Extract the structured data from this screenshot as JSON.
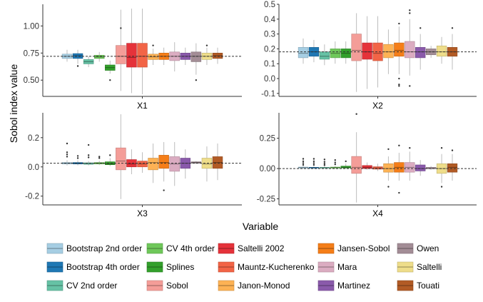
{
  "chart_data": {
    "type": "boxplot",
    "xlabel": "Variable",
    "ylabel": "Sobol index value",
    "methods": [
      {
        "name": "Bootstrap 2nd order",
        "color": "#a6cee3"
      },
      {
        "name": "Bootstrap 4th order",
        "color": "#1f78b4"
      },
      {
        "name": "CV 2nd order",
        "color": "#66c2a5"
      },
      {
        "name": "CV 4th order",
        "color": "#6fc85a"
      },
      {
        "name": "Splines",
        "color": "#33a02c"
      },
      {
        "name": "Sobol",
        "color": "#f49d98"
      },
      {
        "name": "Saltelli 2002",
        "color": "#e5323a"
      },
      {
        "name": "Mauntz-Kucherenko",
        "color": "#f26446"
      },
      {
        "name": "Janon-Monod",
        "color": "#fdb254"
      },
      {
        "name": "Jansen-Sobol",
        "color": "#f57e18"
      },
      {
        "name": "Mara",
        "color": "#dbacc1"
      },
      {
        "name": "Martinez",
        "color": "#8a5aab"
      },
      {
        "name": "Owen",
        "color": "#a38d96"
      },
      {
        "name": "Saltelli",
        "color": "#eedd8a"
      },
      {
        "name": "Touati",
        "color": "#b25b25"
      }
    ],
    "panels": [
      {
        "title": "X1",
        "ylim": [
          0.35,
          1.2
        ],
        "yticks": [
          0.5,
          0.75,
          1.0
        ],
        "ytick_labels": [
          "0.50",
          "0.75",
          "1.00"
        ],
        "reference": 0.72,
        "boxes": [
          {
            "min": 0.67,
            "q1": 0.7,
            "median": 0.72,
            "q3": 0.74,
            "max": 0.78,
            "outliers": []
          },
          {
            "min": 0.65,
            "q1": 0.7,
            "median": 0.725,
            "q3": 0.745,
            "max": 0.78,
            "outliers": [
              0.63
            ]
          },
          {
            "min": 0.62,
            "q1": 0.65,
            "median": 0.67,
            "q3": 0.69,
            "max": 0.72,
            "outliers": []
          },
          {
            "min": 0.67,
            "q1": 0.7,
            "median": 0.715,
            "q3": 0.73,
            "max": 0.76,
            "outliers": []
          },
          {
            "min": 0.56,
            "q1": 0.59,
            "median": 0.615,
            "q3": 0.64,
            "max": 0.68,
            "outliers": [
              0.5
            ]
          },
          {
            "min": 0.4,
            "q1": 0.65,
            "median": 0.72,
            "q3": 0.82,
            "max": 1.15,
            "outliers": [
              0.98
            ]
          },
          {
            "min": 0.38,
            "q1": 0.62,
            "median": 0.71,
            "q3": 0.84,
            "max": 1.16,
            "outliers": []
          },
          {
            "min": 0.37,
            "q1": 0.62,
            "median": 0.72,
            "q3": 0.84,
            "max": 1.16,
            "outliers": []
          },
          {
            "min": 0.64,
            "q1": 0.69,
            "median": 0.715,
            "q3": 0.74,
            "max": 0.79,
            "outliers": [
              0.82
            ]
          },
          {
            "min": 0.64,
            "q1": 0.69,
            "median": 0.72,
            "q3": 0.75,
            "max": 0.8,
            "outliers": []
          },
          {
            "min": 0.58,
            "q1": 0.68,
            "median": 0.72,
            "q3": 0.76,
            "max": 0.85,
            "outliers": []
          },
          {
            "min": 0.64,
            "q1": 0.69,
            "median": 0.72,
            "q3": 0.75,
            "max": 0.8,
            "outliers": []
          },
          {
            "min": 0.55,
            "q1": 0.67,
            "median": 0.72,
            "q3": 0.76,
            "max": 0.84,
            "outliers": [
              0.5
            ]
          },
          {
            "min": 0.64,
            "q1": 0.69,
            "median": 0.72,
            "q3": 0.75,
            "max": 0.8,
            "outliers": [
              0.82
            ]
          },
          {
            "min": 0.65,
            "q1": 0.7,
            "median": 0.725,
            "q3": 0.75,
            "max": 0.8,
            "outliers": []
          }
        ]
      },
      {
        "title": "X2",
        "ylim": [
          -0.12,
          0.5
        ],
        "yticks": [
          -0.1,
          0.0,
          0.1,
          0.2,
          0.3,
          0.4,
          0.5
        ],
        "ytick_labels": [
          "-0.1",
          "0.0",
          "0.1",
          "0.2",
          "0.3",
          "0.4",
          "0.5"
        ],
        "reference": 0.18,
        "boxes": [
          {
            "min": 0.1,
            "q1": 0.14,
            "median": 0.17,
            "q3": 0.21,
            "max": 0.27,
            "outliers": []
          },
          {
            "min": 0.11,
            "q1": 0.15,
            "median": 0.18,
            "q3": 0.21,
            "max": 0.26,
            "outliers": []
          },
          {
            "min": 0.09,
            "q1": 0.13,
            "median": 0.15,
            "q3": 0.18,
            "max": 0.23,
            "outliers": []
          },
          {
            "min": 0.1,
            "q1": 0.14,
            "median": 0.17,
            "q3": 0.2,
            "max": 0.25,
            "outliers": []
          },
          {
            "min": 0.1,
            "q1": 0.14,
            "median": 0.17,
            "q3": 0.2,
            "max": 0.25,
            "outliers": []
          },
          {
            "min": -0.09,
            "q1": 0.12,
            "median": 0.19,
            "q3": 0.3,
            "max": 0.44,
            "outliers": []
          },
          {
            "min": -0.07,
            "q1": 0.13,
            "median": 0.18,
            "q3": 0.24,
            "max": 0.42,
            "outliers": []
          },
          {
            "min": -0.06,
            "q1": 0.12,
            "median": 0.17,
            "q3": 0.24,
            "max": 0.42,
            "outliers": []
          },
          {
            "min": 0.03,
            "q1": 0.14,
            "median": 0.18,
            "q3": 0.23,
            "max": 0.33,
            "outliers": []
          },
          {
            "min": 0.03,
            "q1": 0.15,
            "median": 0.19,
            "q3": 0.24,
            "max": 0.35,
            "outliers": [
              0.37,
              0.0,
              -0.04,
              -0.05
            ]
          },
          {
            "min": 0.02,
            "q1": 0.14,
            "median": 0.18,
            "q3": 0.25,
            "max": 0.4,
            "outliers": [
              0.46,
              0.44,
              -0.05
            ]
          },
          {
            "min": 0.06,
            "q1": 0.14,
            "median": 0.18,
            "q3": 0.21,
            "max": 0.3,
            "outliers": [
              0.34
            ]
          },
          {
            "min": 0.14,
            "q1": 0.16,
            "median": 0.18,
            "q3": 0.2,
            "max": 0.22,
            "outliers": []
          },
          {
            "min": 0.1,
            "q1": 0.15,
            "median": 0.18,
            "q3": 0.22,
            "max": 0.28,
            "outliers": []
          },
          {
            "min": 0.06,
            "q1": 0.15,
            "median": 0.18,
            "q3": 0.21,
            "max": 0.3,
            "outliers": [
              0.34
            ]
          }
        ]
      },
      {
        "title": "X3",
        "ylim": [
          -0.26,
          0.37
        ],
        "yticks": [
          -0.2,
          0.0,
          0.2
        ],
        "ytick_labels": [
          "-0.2",
          "0.0",
          "0.2"
        ],
        "reference": 0.025,
        "boxes": [
          {
            "min": 0.01,
            "q1": 0.02,
            "median": 0.025,
            "q3": 0.03,
            "max": 0.045,
            "outliers": [
              0.16,
              0.1,
              0.085,
              0.07
            ]
          },
          {
            "min": 0.01,
            "q1": 0.02,
            "median": 0.024,
            "q3": 0.03,
            "max": 0.045,
            "outliers": [
              0.075,
              0.06
            ]
          },
          {
            "min": 0.01,
            "q1": 0.018,
            "median": 0.023,
            "q3": 0.028,
            "max": 0.04,
            "outliers": [
              0.15,
              0.08,
              0.065
            ]
          },
          {
            "min": 0.012,
            "q1": 0.02,
            "median": 0.025,
            "q3": 0.03,
            "max": 0.042,
            "outliers": [
              0.07,
              0.06
            ]
          },
          {
            "min": 0.005,
            "q1": 0.015,
            "median": 0.02,
            "q3": 0.035,
            "max": 0.06,
            "outliers": [
              0.08
            ]
          },
          {
            "min": -0.22,
            "q1": -0.02,
            "median": 0.04,
            "q3": 0.13,
            "max": 0.36,
            "outliers": []
          },
          {
            "min": -0.05,
            "q1": 0.0,
            "median": 0.02,
            "q3": 0.05,
            "max": 0.12,
            "outliers": []
          },
          {
            "min": -0.04,
            "q1": 0.0,
            "median": 0.02,
            "q3": 0.04,
            "max": 0.1,
            "outliers": []
          },
          {
            "min": -0.11,
            "q1": -0.02,
            "median": 0.03,
            "q3": 0.06,
            "max": 0.16,
            "outliers": []
          },
          {
            "min": -0.1,
            "q1": -0.01,
            "median": 0.03,
            "q3": 0.08,
            "max": 0.17,
            "outliers": [
              -0.16
            ]
          },
          {
            "min": -0.13,
            "q1": -0.03,
            "median": 0.02,
            "q3": 0.07,
            "max": 0.17,
            "outliers": []
          },
          {
            "min": -0.08,
            "q1": -0.01,
            "median": 0.025,
            "q3": 0.06,
            "max": 0.12,
            "outliers": []
          },
          {
            "min": 0.02,
            "q1": 0.025,
            "median": 0.03,
            "q3": 0.035,
            "max": 0.04,
            "outliers": []
          },
          {
            "min": -0.1,
            "q1": -0.01,
            "median": 0.02,
            "q3": 0.06,
            "max": 0.14,
            "outliers": []
          },
          {
            "min": -0.09,
            "q1": -0.01,
            "median": 0.03,
            "q3": 0.07,
            "max": 0.16,
            "outliers": []
          }
        ]
      },
      {
        "title": "X4",
        "ylim": [
          -0.3,
          0.46
        ],
        "yticks": [
          -0.25,
          0.0,
          0.25
        ],
        "ytick_labels": [
          "-0.25",
          "0.00",
          "0.25"
        ],
        "reference": 0.0,
        "boxes": [
          {
            "min": 0.0,
            "q1": 0.004,
            "median": 0.008,
            "q3": 0.012,
            "max": 0.02,
            "outliers": [
              0.08,
              0.06,
              0.045,
              0.03
            ]
          },
          {
            "min": 0.0,
            "q1": 0.004,
            "median": 0.007,
            "q3": 0.01,
            "max": 0.018,
            "outliers": [
              0.08,
              0.06,
              0.045,
              0.03
            ]
          },
          {
            "min": 0.0,
            "q1": 0.004,
            "median": 0.007,
            "q3": 0.01,
            "max": 0.018,
            "outliers": [
              0.075,
              0.055,
              0.04,
              0.028
            ]
          },
          {
            "min": 0.0,
            "q1": 0.004,
            "median": 0.008,
            "q3": 0.012,
            "max": 0.02,
            "outliers": [
              0.07,
              0.05,
              0.035
            ]
          },
          {
            "min": 0.0,
            "q1": 0.005,
            "median": 0.01,
            "q3": 0.02,
            "max": 0.04,
            "outliers": [
              0.06
            ]
          },
          {
            "min": -0.28,
            "q1": -0.04,
            "median": 0.01,
            "q3": 0.1,
            "max": 0.3,
            "outliers": [
              0.45
            ]
          },
          {
            "min": -0.01,
            "q1": 0.0,
            "median": 0.01,
            "q3": 0.025,
            "max": 0.05,
            "outliers": []
          },
          {
            "min": -0.02,
            "q1": -0.005,
            "median": 0.005,
            "q3": 0.015,
            "max": 0.04,
            "outliers": []
          },
          {
            "min": -0.1,
            "q1": -0.03,
            "median": 0.0,
            "q3": 0.04,
            "max": 0.1,
            "outliers": [
              0.16,
              -0.15
            ]
          },
          {
            "min": -0.1,
            "q1": -0.03,
            "median": 0.01,
            "q3": 0.05,
            "max": 0.13,
            "outliers": [
              0.19,
              -0.2
            ]
          },
          {
            "min": -0.1,
            "q1": -0.03,
            "median": 0.01,
            "q3": 0.05,
            "max": 0.14,
            "outliers": [
              0.17
            ]
          },
          {
            "min": -0.06,
            "q1": -0.02,
            "median": 0.0,
            "q3": 0.03,
            "max": 0.07,
            "outliers": []
          },
          {
            "min": -0.01,
            "q1": 0.0,
            "median": 0.0,
            "q3": 0.01,
            "max": 0.02,
            "outliers": []
          },
          {
            "min": -0.12,
            "q1": -0.04,
            "median": 0.0,
            "q3": 0.04,
            "max": 0.12,
            "outliers": [
              0.17,
              -0.15
            ]
          },
          {
            "min": -0.1,
            "q1": -0.03,
            "median": 0.01,
            "q3": 0.04,
            "max": 0.12,
            "outliers": [
              0.15
            ]
          }
        ]
      }
    ],
    "legend_position": "bottom",
    "grid": false
  }
}
